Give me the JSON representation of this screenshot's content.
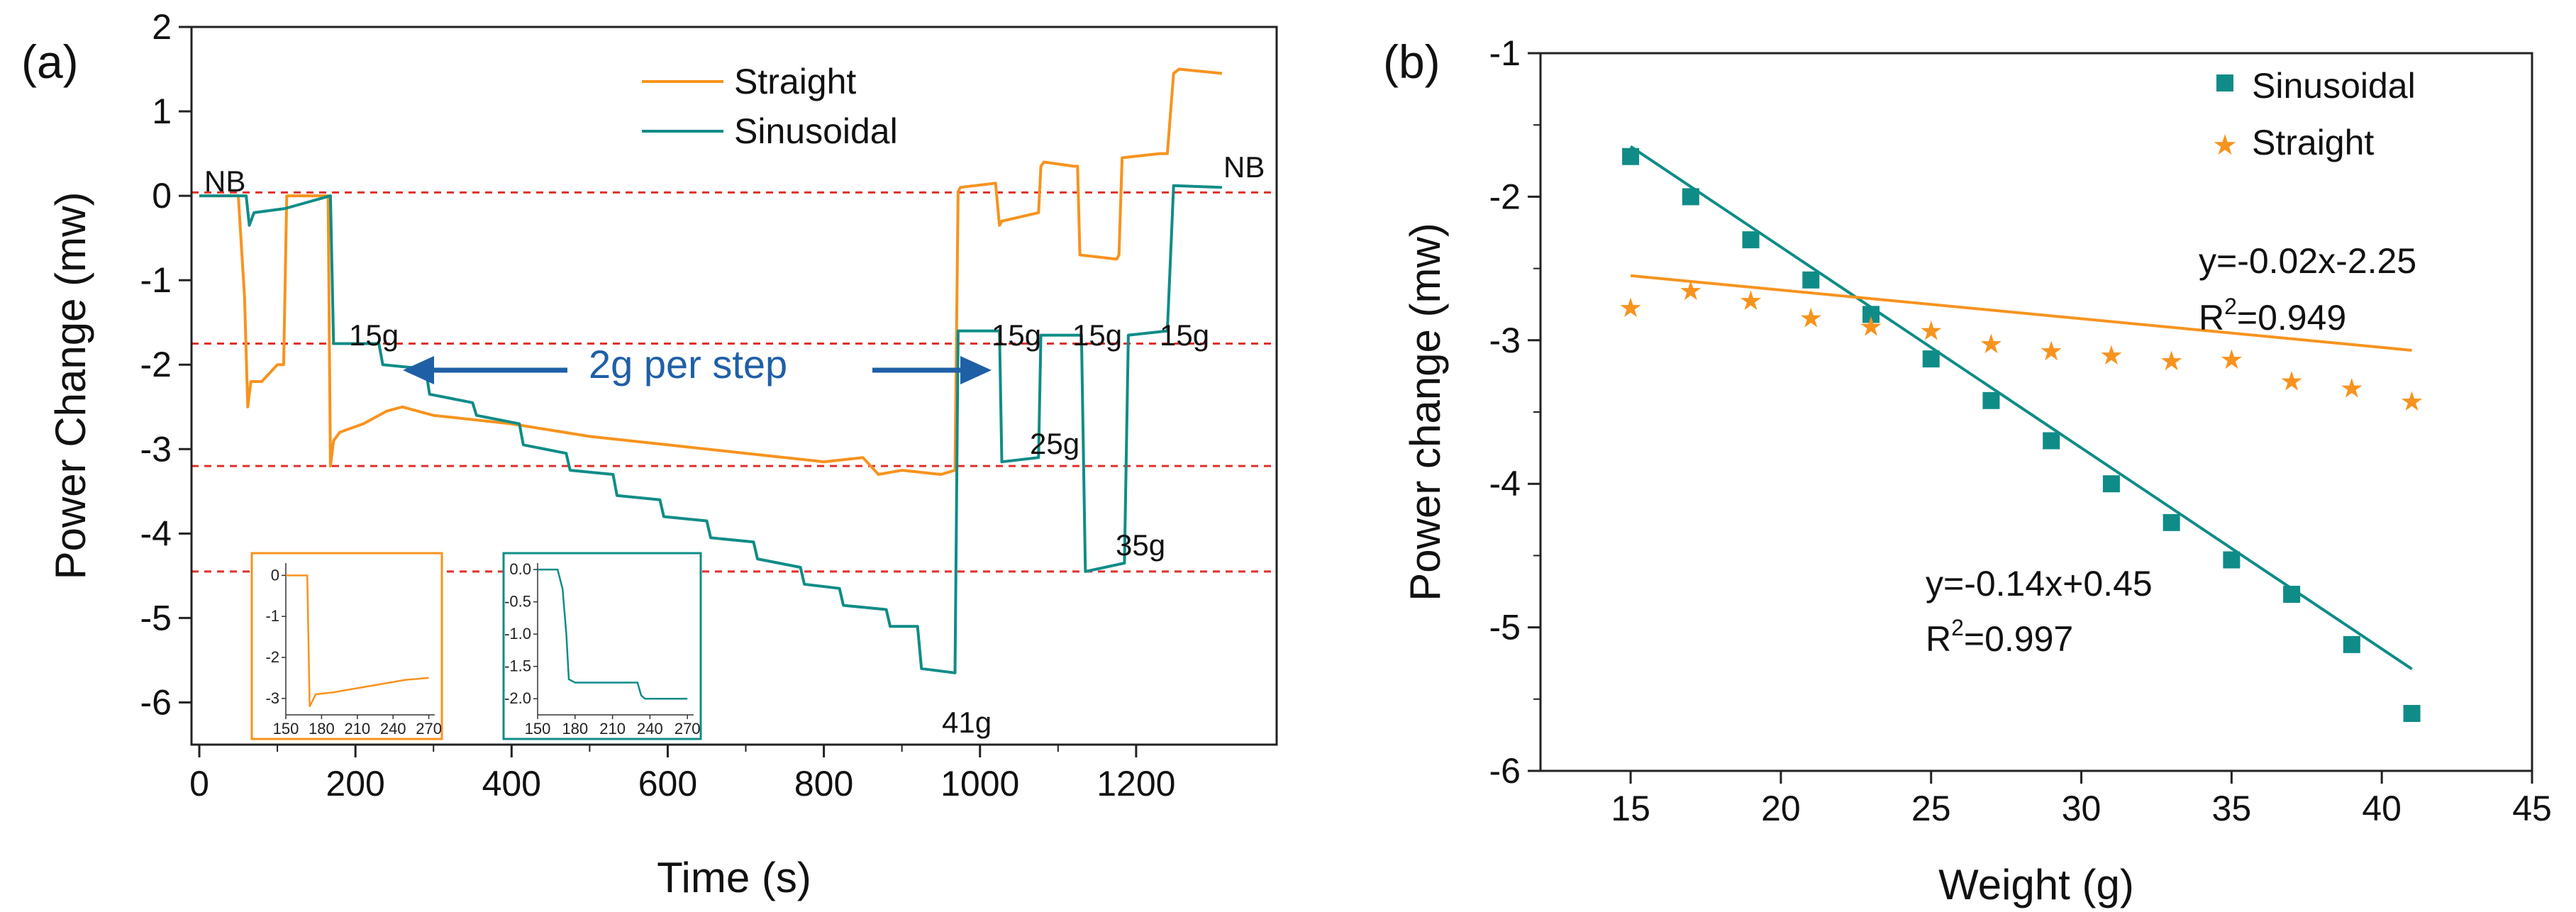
{
  "colors": {
    "straight": "#F7931E",
    "sinusoidal": "#0F8C87",
    "dashed": "#E0302A",
    "arrow": "#1f5fa6"
  },
  "chart_data": [
    {
      "type": "line",
      "panel_label": "(a)",
      "title": "",
      "xlabel": "Time (s)",
      "ylabel": "Power Change (mw)",
      "xlim": [
        -10,
        1380
      ],
      "ylim": [
        -6.5,
        2
      ],
      "xticks": [
        0,
        200,
        400,
        600,
        800,
        1000,
        1200
      ],
      "yticks": [
        2,
        1,
        0,
        -1,
        -2,
        -3,
        -4,
        -5,
        -6
      ],
      "reference_lines_y": [
        0.04,
        -1.75,
        -3.2,
        -4.45
      ],
      "series": [
        {
          "name": "Straight",
          "x": [
            0,
            50,
            58,
            62,
            66,
            80,
            100,
            108,
            112,
            118,
            165,
            168,
            172,
            180,
            210,
            240,
            260,
            300,
            400,
            500,
            600,
            700,
            800,
            850,
            870,
            900,
            950,
            968,
            972,
            975,
            1020,
            1025,
            1028,
            1075,
            1078,
            1082,
            1120,
            1125,
            1128,
            1175,
            1178,
            1182,
            1230,
            1240,
            1248,
            1255,
            1310
          ],
          "y": [
            0,
            0,
            -1.2,
            -2.5,
            -2.2,
            -2.2,
            -2.0,
            -2.0,
            0,
            0,
            0,
            -3.2,
            -2.9,
            -2.8,
            -2.7,
            -2.55,
            -2.5,
            -2.6,
            -2.7,
            -2.85,
            -2.95,
            -3.05,
            -3.15,
            -3.1,
            -3.3,
            -3.25,
            -3.3,
            -3.25,
            0.05,
            0.1,
            0.15,
            -0.35,
            -0.3,
            -0.2,
            0.35,
            0.4,
            0.35,
            0.35,
            -0.7,
            -0.75,
            -0.7,
            0.45,
            0.5,
            0.5,
            1.45,
            1.5,
            1.45
          ]
        },
        {
          "name": "Sinusoidal",
          "x": [
            0,
            60,
            64,
            70,
            110,
            168,
            172,
            230,
            235,
            290,
            295,
            350,
            355,
            410,
            415,
            470,
            475,
            530,
            535,
            590,
            595,
            650,
            655,
            710,
            715,
            770,
            775,
            820,
            825,
            880,
            885,
            920,
            925,
            968,
            972,
            1025,
            1028,
            1075,
            1078,
            1130,
            1135,
            1185,
            1190,
            1240,
            1248,
            1310
          ],
          "y": [
            0,
            0,
            -0.35,
            -0.2,
            -0.15,
            0,
            -1.75,
            -1.75,
            -2.0,
            -2.05,
            -2.35,
            -2.45,
            -2.6,
            -2.7,
            -2.95,
            -3.05,
            -3.25,
            -3.3,
            -3.55,
            -3.6,
            -3.8,
            -3.85,
            -4.05,
            -4.1,
            -4.3,
            -4.4,
            -4.6,
            -4.65,
            -4.85,
            -4.9,
            -5.1,
            -5.1,
            -5.6,
            -5.65,
            -1.6,
            -1.6,
            -3.15,
            -3.1,
            -1.65,
            -1.65,
            -4.45,
            -4.35,
            -1.65,
            -1.6,
            0.12,
            0.1
          ]
        }
      ],
      "annotations": [
        "NB",
        "15g",
        "2g per step",
        "15g",
        "15g",
        "15g",
        "25g",
        "35g",
        "41g",
        "NB"
      ],
      "insets": [
        {
          "type": "line",
          "series": "Straight",
          "xlim": [
            150,
            275
          ],
          "ylim": [
            -3.4,
            0.3
          ],
          "xticks": [
            "150",
            "180",
            "210",
            "240",
            "270"
          ],
          "yticks": [
            "0",
            "-1",
            "-2",
            "-3"
          ],
          "x": [
            150,
            168,
            170,
            175,
            190,
            210,
            230,
            250,
            270
          ],
          "y": [
            0,
            0,
            -3.2,
            -2.9,
            -2.85,
            -2.75,
            -2.65,
            -2.55,
            -2.5
          ]
        },
        {
          "type": "line",
          "series": "Sinusoidal",
          "xlim": [
            150,
            275
          ],
          "ylim": [
            -2.25,
            0.1
          ],
          "xticks": [
            "150",
            "180",
            "210",
            "240",
            "270"
          ],
          "yticks": [
            "0.0",
            "-0.5",
            "-1.0",
            "-1.5",
            "-2.0"
          ],
          "x": [
            150,
            166,
            170,
            173,
            175,
            180,
            200,
            230,
            233,
            236,
            250,
            270
          ],
          "y": [
            0,
            0,
            -0.3,
            -1.0,
            -1.7,
            -1.75,
            -1.75,
            -1.75,
            -1.95,
            -2.0,
            -2.0,
            -2.0
          ]
        }
      ]
    },
    {
      "type": "scatter",
      "panel_label": "(b)",
      "title": "",
      "xlabel": "Weight (g)",
      "ylabel": "Power change (mw)",
      "xlim": [
        12,
        45
      ],
      "ylim": [
        -6,
        -1
      ],
      "xticks": [
        15,
        20,
        25,
        30,
        35,
        40,
        45
      ],
      "yticks": [
        -1,
        -2,
        -3,
        -4,
        -5,
        -6
      ],
      "series": [
        {
          "name": "Sinusoidal",
          "marker": "square",
          "x": [
            15,
            17,
            19,
            21,
            23,
            25,
            27,
            29,
            31,
            33,
            35,
            37,
            39,
            41
          ],
          "y": [
            -1.72,
            -2.0,
            -2.3,
            -2.58,
            -2.82,
            -3.13,
            -3.42,
            -3.7,
            -4.0,
            -4.27,
            -4.53,
            -4.77,
            -5.12,
            -5.6
          ],
          "fit": {
            "slope": -0.14,
            "intercept": 0.45
          }
        },
        {
          "name": "Straight",
          "marker": "star",
          "x": [
            15,
            17,
            19,
            21,
            23,
            25,
            27,
            29,
            31,
            33,
            35,
            37,
            39,
            41
          ],
          "y": [
            -2.77,
            -2.65,
            -2.72,
            -2.84,
            -2.9,
            -2.93,
            -3.02,
            -3.07,
            -3.1,
            -3.14,
            -3.13,
            -3.28,
            -3.33,
            -3.42
          ],
          "fit": {
            "slope": -0.02,
            "intercept": -2.25
          }
        }
      ],
      "annotations": [
        {
          "series": "Straight",
          "equation": "y=-0.02x-2.25",
          "r2_label": "R",
          "r2_sup": "2",
          "r2_value": "=0.949"
        },
        {
          "series": "Sinusoidal",
          "equation": "y=-0.14x+0.45",
          "r2_label": "R",
          "r2_sup": "2",
          "r2_value": "=0.997"
        }
      ]
    }
  ]
}
